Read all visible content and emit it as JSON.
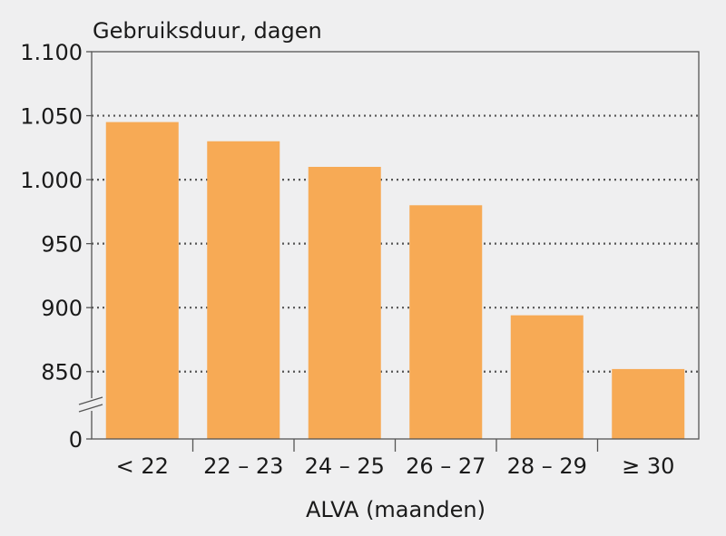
{
  "chart_data": {
    "type": "bar",
    "title": "",
    "ylabel": "Gebruiksduur, dagen",
    "xlabel": "ALVA (maanden)",
    "categories": [
      "< 22",
      "22 – 23",
      "24 – 25",
      "26 – 27",
      "28 – 29",
      "≥ 30"
    ],
    "values": [
      1045,
      1030,
      1010,
      980,
      894,
      852
    ],
    "ylim": [
      0,
      1100
    ],
    "axis_break": [
      0,
      825
    ],
    "yticks": [
      0,
      850,
      900,
      950,
      1000,
      1050,
      1100
    ],
    "ytick_labels": [
      "0",
      "850",
      "900",
      "950",
      "1.000",
      "1.050",
      "1.100"
    ],
    "grid": true,
    "grid_style": "dotted",
    "legend": "none",
    "colors": {
      "bar": "#f7aa55",
      "background": "#efeff0",
      "grid": "#555555",
      "axis": "#555555"
    }
  }
}
